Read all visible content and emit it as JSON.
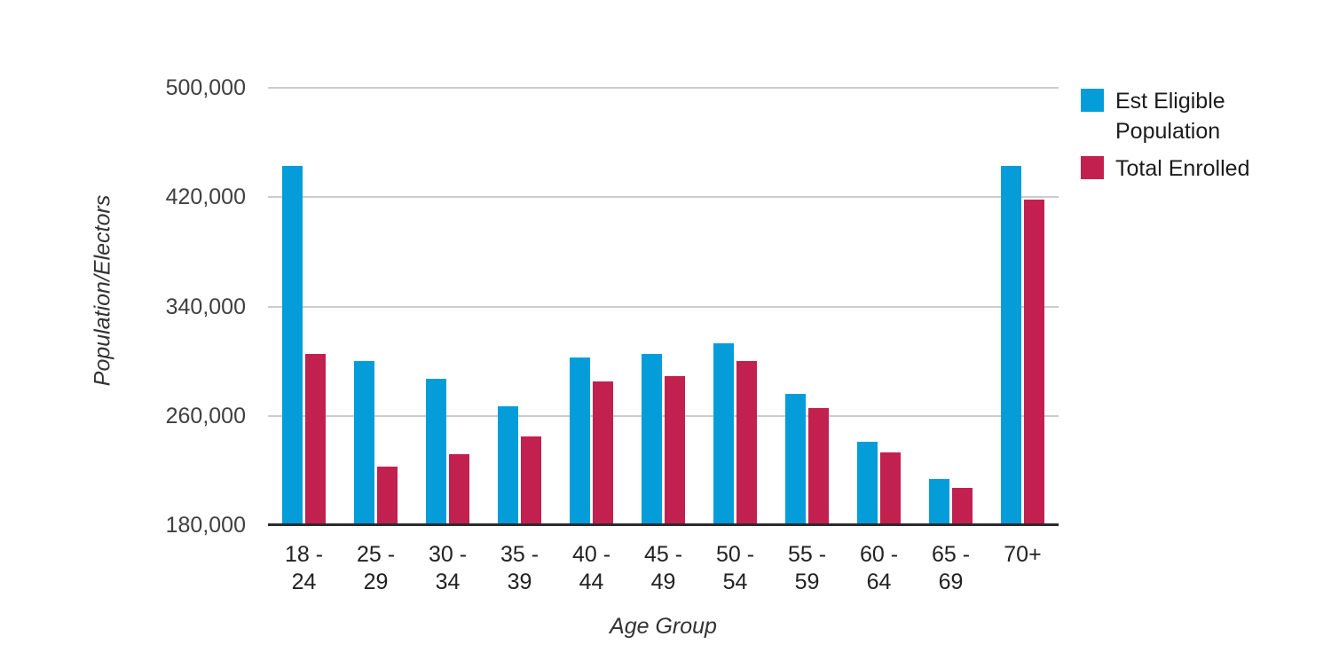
{
  "chart_data": {
    "type": "bar",
    "title": "",
    "xlabel": "Age Group",
    "ylabel": "Population/Electors",
    "categories": [
      "18 - 24",
      "25 - 29",
      "30 - 34",
      "35 - 39",
      "40 - 44",
      "45 - 49",
      "50 - 54",
      "55 - 59",
      "60 - 64",
      "65 - 69",
      "70+"
    ],
    "category_label_lines": [
      [
        "18 -",
        "24"
      ],
      [
        "25 -",
        "29"
      ],
      [
        "30 -",
        "34"
      ],
      [
        "35 -",
        "39"
      ],
      [
        "40 -",
        "44"
      ],
      [
        "45 -",
        "49"
      ],
      [
        "50 -",
        "54"
      ],
      [
        "55 -",
        "59"
      ],
      [
        "60 -",
        "64"
      ],
      [
        "65 -",
        "69"
      ],
      [
        "70+"
      ]
    ],
    "series": [
      {
        "name": "Est Eligible Population",
        "color": "#049DD9",
        "values": [
          443000,
          300000,
          287000,
          267000,
          303000,
          305000,
          313000,
          276000,
          241000,
          214000,
          443000
        ]
      },
      {
        "name": "Total Enrolled",
        "color": "#C2204E",
        "values": [
          305000,
          223000,
          232000,
          245000,
          285000,
          289000,
          300000,
          266000,
          233000,
          207000,
          418000
        ]
      }
    ],
    "ylim": [
      180000,
      500000
    ],
    "ytick_values": [
      500000,
      420000,
      340000,
      260000,
      180000
    ],
    "ytick_labels": [
      "500,000",
      "420,000",
      "340,000",
      "260,000",
      "180,000"
    ],
    "grid": true,
    "legend_position": "top-right"
  },
  "colors": {
    "grid": "#CCCCCC",
    "baseline": "#2B2B2B",
    "tick_text": "#404040",
    "label_text": "#222222"
  }
}
